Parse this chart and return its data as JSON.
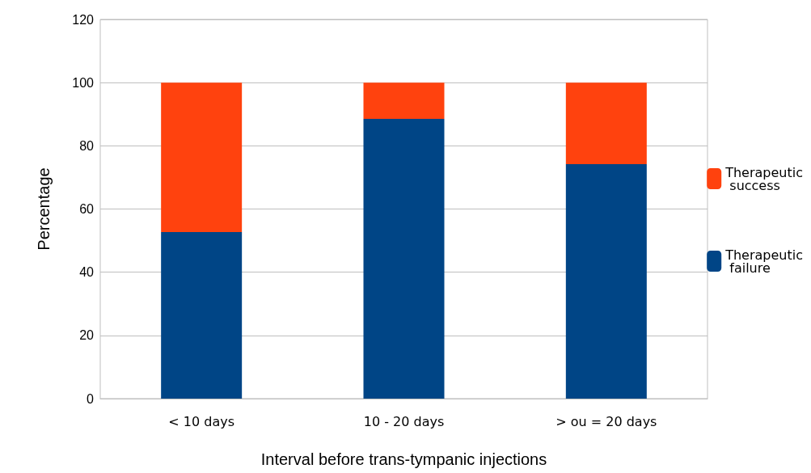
{
  "chart_data": {
    "type": "bar",
    "xlabel": "Interval before trans-tympanic injections",
    "ylabel": "Percentage",
    "categories": [
      "< 10 days",
      "10 - 20 days",
      "> ou = 20 days"
    ],
    "stacked": true,
    "series": [
      {
        "name": "Therapeutic failure",
        "color": "#004586",
        "values": [
          52.7,
          88.5,
          74.2
        ]
      },
      {
        "name": "Therapeutic success",
        "color": "#ff420e",
        "values": [
          47.3,
          11.5,
          25.8
        ]
      }
    ],
    "ylim": [
      0,
      120
    ],
    "yticks": [
      0,
      20,
      40,
      60,
      80,
      100,
      120
    ],
    "grid": "y",
    "legend": "right"
  }
}
